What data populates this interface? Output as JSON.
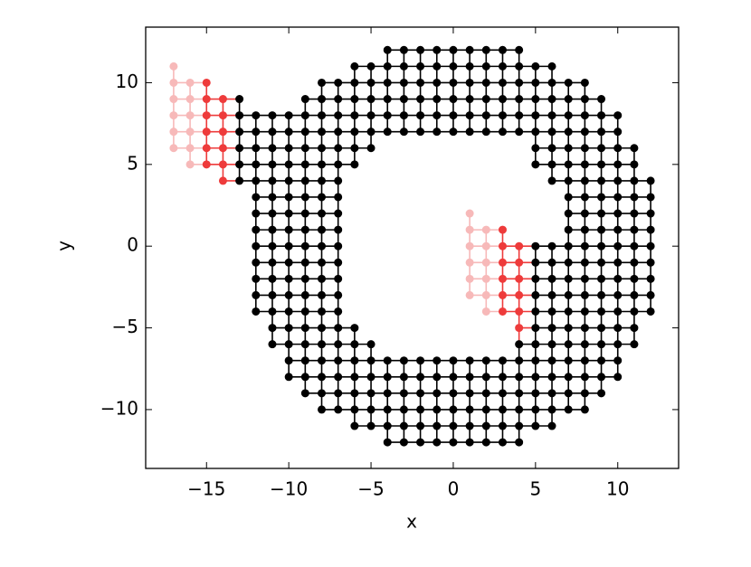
{
  "chart_data": {
    "type": "scatter",
    "xlabel": "x",
    "ylabel": "y",
    "xlim": [
      -18.7,
      13.7
    ],
    "ylim": [
      -13.6,
      13.4
    ],
    "xticks": [
      {
        "value": -15,
        "label": "−15"
      },
      {
        "value": -10,
        "label": "−10"
      },
      {
        "value": -5,
        "label": "−5"
      },
      0,
      5,
      10
    ],
    "yticks": [
      {
        "value": -10,
        "label": "−10"
      },
      {
        "value": -5,
        "label": "−5"
      },
      0,
      5,
      10
    ],
    "series": [
      {
        "color": "#000000",
        "rows": [
          {
            "y": 12,
            "x": [
              -4,
              -3,
              -2,
              -1,
              0,
              1,
              2,
              3,
              4
            ]
          },
          {
            "y": 11,
            "x": [
              -6,
              -5,
              -4,
              -3,
              -2,
              -1,
              0,
              1,
              2,
              3,
              4,
              5,
              6
            ]
          },
          {
            "y": 10,
            "x": [
              -8,
              -7,
              -6,
              -5,
              -4,
              -3,
              -2,
              -1,
              0,
              1,
              2,
              3,
              4,
              5,
              6,
              7,
              8
            ]
          },
          {
            "y": 9,
            "x": [
              -13,
              -9,
              -8,
              -7,
              -6,
              -5,
              -4,
              -3,
              -2,
              -1,
              0,
              1,
              2,
              3,
              4,
              5,
              6,
              7,
              8,
              9
            ]
          },
          {
            "y": 8,
            "x": [
              -13,
              -12,
              -11,
              -10,
              -9,
              -8,
              -7,
              -6,
              -5,
              -4,
              -3,
              -2,
              -1,
              0,
              1,
              2,
              3,
              4,
              5,
              6,
              7,
              8,
              9,
              10
            ]
          },
          {
            "y": 7,
            "x": [
              -13,
              -12,
              -11,
              -10,
              -9,
              -8,
              -7,
              -6,
              -5,
              -4,
              -3,
              -2,
              -1,
              0,
              1,
              2,
              3,
              4,
              5,
              6,
              7,
              8,
              9,
              10
            ]
          },
          {
            "y": 6,
            "x": [
              -13,
              -12,
              -11,
              -10,
              -9,
              -8,
              -7,
              -6,
              -5,
              5,
              6,
              7,
              8,
              9,
              10,
              11
            ]
          },
          {
            "y": 5,
            "x": [
              -13,
              -12,
              -11,
              -10,
              -9,
              -8,
              -7,
              -6,
              5,
              6,
              7,
              8,
              9,
              10,
              11
            ]
          },
          {
            "y": 4,
            "x": [
              -13,
              -12,
              -11,
              -10,
              -9,
              -8,
              -7,
              6,
              7,
              8,
              9,
              10,
              11,
              12
            ]
          },
          {
            "y": 3,
            "x": [
              -12,
              -11,
              -10,
              -9,
              -8,
              -7,
              7,
              8,
              9,
              10,
              11,
              12
            ]
          },
          {
            "y": 2,
            "x": [
              -12,
              -11,
              -10,
              -9,
              -8,
              -7,
              7,
              8,
              9,
              10,
              11,
              12
            ]
          },
          {
            "y": 1,
            "x": [
              -12,
              -11,
              -10,
              -9,
              -8,
              -7,
              7,
              8,
              9,
              10,
              11,
              12
            ]
          },
          {
            "y": 0,
            "x": [
              -12,
              -11,
              -10,
              -9,
              -8,
              -7,
              5,
              6,
              7,
              8,
              9,
              10,
              11,
              12
            ]
          },
          {
            "y": -1,
            "x": [
              -12,
              -11,
              -10,
              -9,
              -8,
              -7,
              5,
              6,
              7,
              8,
              9,
              10,
              11,
              12
            ]
          },
          {
            "y": -2,
            "x": [
              -12,
              -11,
              -10,
              -9,
              -8,
              -7,
              5,
              6,
              7,
              8,
              9,
              10,
              11,
              12
            ]
          },
          {
            "y": -3,
            "x": [
              -12,
              -11,
              -10,
              -9,
              -8,
              -7,
              5,
              6,
              7,
              8,
              9,
              10,
              11,
              12
            ]
          },
          {
            "y": -4,
            "x": [
              -12,
              -11,
              -10,
              -9,
              -8,
              -7,
              5,
              6,
              7,
              8,
              9,
              10,
              11,
              12
            ]
          },
          {
            "y": -5,
            "x": [
              -11,
              -10,
              -9,
              -8,
              -7,
              -6,
              5,
              6,
              7,
              8,
              9,
              10,
              11
            ]
          },
          {
            "y": -6,
            "x": [
              -11,
              -10,
              -9,
              -8,
              -7,
              -6,
              -5,
              4,
              5,
              6,
              7,
              8,
              9,
              10,
              11
            ]
          },
          {
            "y": -7,
            "x": [
              -10,
              -9,
              -8,
              -7,
              -6,
              -5,
              -4,
              -3,
              -2,
              -1,
              0,
              1,
              2,
              3,
              4,
              5,
              6,
              7,
              8,
              9,
              10
            ]
          },
          {
            "y": -8,
            "x": [
              -10,
              -9,
              -8,
              -7,
              -6,
              -5,
              -4,
              -3,
              -2,
              -1,
              0,
              1,
              2,
              3,
              4,
              5,
              6,
              7,
              8,
              9,
              10
            ]
          },
          {
            "y": -9,
            "x": [
              -9,
              -8,
              -7,
              -6,
              -5,
              -4,
              -3,
              -2,
              -1,
              0,
              1,
              2,
              3,
              4,
              5,
              6,
              7,
              8,
              9
            ]
          },
          {
            "y": -10,
            "x": [
              -8,
              -7,
              -6,
              -5,
              -4,
              -3,
              -2,
              -1,
              0,
              1,
              2,
              3,
              4,
              5,
              6,
              7,
              8
            ]
          },
          {
            "y": -11,
            "x": [
              -6,
              -5,
              -4,
              -3,
              -2,
              -1,
              0,
              1,
              2,
              3,
              4,
              5,
              6
            ]
          },
          {
            "y": -12,
            "x": [
              -4,
              -3,
              -2,
              -1,
              0,
              1,
              2,
              3,
              4
            ]
          }
        ]
      },
      {
        "color": "#ee3b3b",
        "rows": [
          {
            "y": 10,
            "x": [
              -15
            ]
          },
          {
            "y": 9,
            "x": [
              -15,
              -14
            ]
          },
          {
            "y": 8,
            "x": [
              -15,
              -14
            ]
          },
          {
            "y": 7,
            "x": [
              -15,
              -14
            ]
          },
          {
            "y": 6,
            "x": [
              -15,
              -14
            ]
          },
          {
            "y": 5,
            "x": [
              -15,
              -14
            ]
          },
          {
            "y": 4,
            "x": [
              -14
            ]
          },
          {
            "y": 1,
            "x": [
              3
            ]
          },
          {
            "y": 0,
            "x": [
              3,
              4
            ]
          },
          {
            "y": -1,
            "x": [
              3,
              4
            ]
          },
          {
            "y": -2,
            "x": [
              3,
              4
            ]
          },
          {
            "y": -3,
            "x": [
              3,
              4
            ]
          },
          {
            "y": -4,
            "x": [
              3,
              4
            ]
          },
          {
            "y": -5,
            "x": [
              4
            ]
          }
        ]
      },
      {
        "color": "#f7b9b9",
        "rows": [
          {
            "y": 11,
            "x": [
              -17
            ]
          },
          {
            "y": 10,
            "x": [
              -17,
              -16
            ]
          },
          {
            "y": 9,
            "x": [
              -17,
              -16
            ]
          },
          {
            "y": 8,
            "x": [
              -17,
              -16
            ]
          },
          {
            "y": 7,
            "x": [
              -17,
              -16
            ]
          },
          {
            "y": 6,
            "x": [
              -17,
              -16
            ]
          },
          {
            "y": 5,
            "x": [
              -16
            ]
          },
          {
            "y": 2,
            "x": [
              1
            ]
          },
          {
            "y": 1,
            "x": [
              1,
              2
            ]
          },
          {
            "y": 0,
            "x": [
              1,
              2
            ]
          },
          {
            "y": -1,
            "x": [
              1,
              2
            ]
          },
          {
            "y": -2,
            "x": [
              1,
              2
            ]
          },
          {
            "y": -3,
            "x": [
              1,
              2
            ]
          },
          {
            "y": -4,
            "x": [
              2
            ]
          }
        ]
      }
    ]
  }
}
